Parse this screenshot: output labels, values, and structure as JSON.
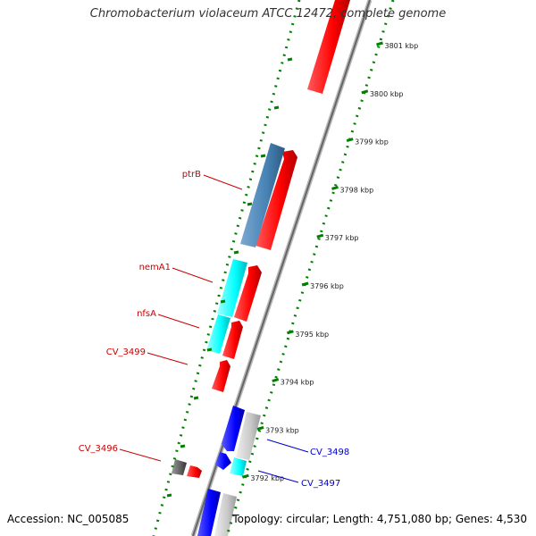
{
  "title": "Chromobacterium violaceum ATCC 12472, complete genome",
  "accession": "Accession: NC_005085",
  "summary": "Topology: circular; Length: 4,751,080 bp; Genes: 4,530",
  "colors": {
    "forward_cds": "#ff0000",
    "ptrB": "#4682b4",
    "cyan_feature": "#00ffff",
    "blue_feature": "#0000ff",
    "gray_feature": "#c0c0c0",
    "dark_feature": "#555555",
    "backbone": "#888888",
    "tick_dots": "#008000",
    "left_label": "#cc0000",
    "right_label": "#0000cc"
  },
  "ticks": [
    {
      "label": "3801 kbp",
      "pos_kbp": 3801
    },
    {
      "label": "3800 kbp",
      "pos_kbp": 3800
    },
    {
      "label": "3799 kbp",
      "pos_kbp": 3799
    },
    {
      "label": "3798 kbp",
      "pos_kbp": 3798
    },
    {
      "label": "3797 kbp",
      "pos_kbp": 3797
    },
    {
      "label": "3796 kbp",
      "pos_kbp": 3796
    },
    {
      "label": "3795 kbp",
      "pos_kbp": 3795
    },
    {
      "label": "3794 kbp",
      "pos_kbp": 3794
    },
    {
      "label": "3793 kbp",
      "pos_kbp": 3793
    },
    {
      "label": "3792 kbp",
      "pos_kbp": 3792
    }
  ],
  "gene_labels": {
    "ptrB": "ptrB",
    "nemA1": "nemA1",
    "nfsA": "nfsA",
    "cv3499": "CV_3499",
    "cv3496": "CV_3496",
    "cv3498": "CV_3498",
    "cv3497": "CV_3497"
  }
}
